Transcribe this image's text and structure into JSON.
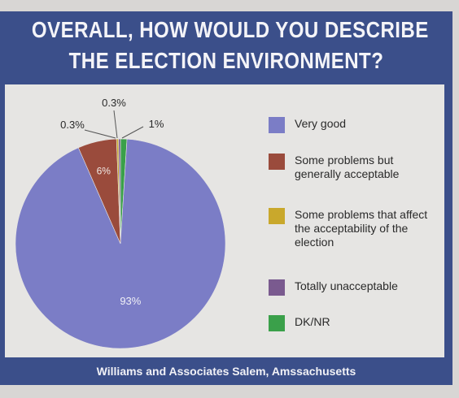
{
  "chart_data": {
    "type": "pie",
    "title_lines": [
      "OVERALL, HOW WOULD YOU DESCRIBE",
      "THE ELECTION ENVIRONMENT?"
    ],
    "slices": [
      {
        "label": "Very good",
        "value": 93,
        "value_label": "93%",
        "color": "#7b7dc6"
      },
      {
        "label": "Some problems but generally acceptable",
        "value": 6,
        "value_label": "6%",
        "color": "#9a4b3c"
      },
      {
        "label": "Some problems that affect the acceptability of the election",
        "value": 0.3,
        "value_label": "0.3%",
        "color": "#c9a82c"
      },
      {
        "label": "Totally unacceptable",
        "value": 0.3,
        "value_label": "0.3%",
        "color": "#7a5a8f"
      },
      {
        "label": "DK/NR",
        "value": 1,
        "value_label": "1%",
        "color": "#3aa04a"
      }
    ],
    "legend_position": "right",
    "source": "Williams and Associates Salem, Amssachusetts"
  }
}
